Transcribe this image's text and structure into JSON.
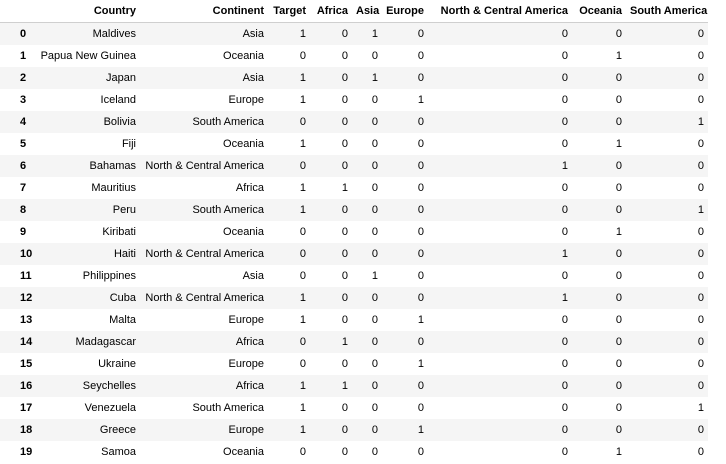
{
  "table": {
    "headers": [
      "",
      "Country",
      "Continent",
      "Target",
      "Africa",
      "Asia",
      "Europe",
      "North & Central America",
      "Oceania",
      "South America"
    ],
    "rows": [
      [
        "0",
        "Maldives",
        "Asia",
        "1",
        "0",
        "1",
        "0",
        "0",
        "0",
        "0"
      ],
      [
        "1",
        "Papua New Guinea",
        "Oceania",
        "0",
        "0",
        "0",
        "0",
        "0",
        "1",
        "0"
      ],
      [
        "2",
        "Japan",
        "Asia",
        "1",
        "0",
        "1",
        "0",
        "0",
        "0",
        "0"
      ],
      [
        "3",
        "Iceland",
        "Europe",
        "1",
        "0",
        "0",
        "1",
        "0",
        "0",
        "0"
      ],
      [
        "4",
        "Bolivia",
        "South America",
        "0",
        "0",
        "0",
        "0",
        "0",
        "0",
        "1"
      ],
      [
        "5",
        "Fiji",
        "Oceania",
        "1",
        "0",
        "0",
        "0",
        "0",
        "1",
        "0"
      ],
      [
        "6",
        "Bahamas",
        "North & Central America",
        "0",
        "0",
        "0",
        "0",
        "1",
        "0",
        "0"
      ],
      [
        "7",
        "Mauritius",
        "Africa",
        "1",
        "1",
        "0",
        "0",
        "0",
        "0",
        "0"
      ],
      [
        "8",
        "Peru",
        "South America",
        "1",
        "0",
        "0",
        "0",
        "0",
        "0",
        "1"
      ],
      [
        "9",
        "Kiribati",
        "Oceania",
        "0",
        "0",
        "0",
        "0",
        "0",
        "1",
        "0"
      ],
      [
        "10",
        "Haiti",
        "North & Central America",
        "0",
        "0",
        "0",
        "0",
        "1",
        "0",
        "0"
      ],
      [
        "11",
        "Philippines",
        "Asia",
        "0",
        "0",
        "1",
        "0",
        "0",
        "0",
        "0"
      ],
      [
        "12",
        "Cuba",
        "North & Central America",
        "1",
        "0",
        "0",
        "0",
        "1",
        "0",
        "0"
      ],
      [
        "13",
        "Malta",
        "Europe",
        "1",
        "0",
        "0",
        "1",
        "0",
        "0",
        "0"
      ],
      [
        "14",
        "Madagascar",
        "Africa",
        "0",
        "1",
        "0",
        "0",
        "0",
        "0",
        "0"
      ],
      [
        "15",
        "Ukraine",
        "Europe",
        "0",
        "0",
        "0",
        "1",
        "0",
        "0",
        "0"
      ],
      [
        "16",
        "Seychelles",
        "Africa",
        "1",
        "1",
        "0",
        "0",
        "0",
        "0",
        "0"
      ],
      [
        "17",
        "Venezuela",
        "South America",
        "1",
        "0",
        "0",
        "0",
        "0",
        "0",
        "1"
      ],
      [
        "18",
        "Greece",
        "Europe",
        "1",
        "0",
        "0",
        "1",
        "0",
        "0",
        "0"
      ],
      [
        "19",
        "Samoa",
        "Oceania",
        "0",
        "0",
        "0",
        "0",
        "0",
        "1",
        "0"
      ]
    ]
  }
}
